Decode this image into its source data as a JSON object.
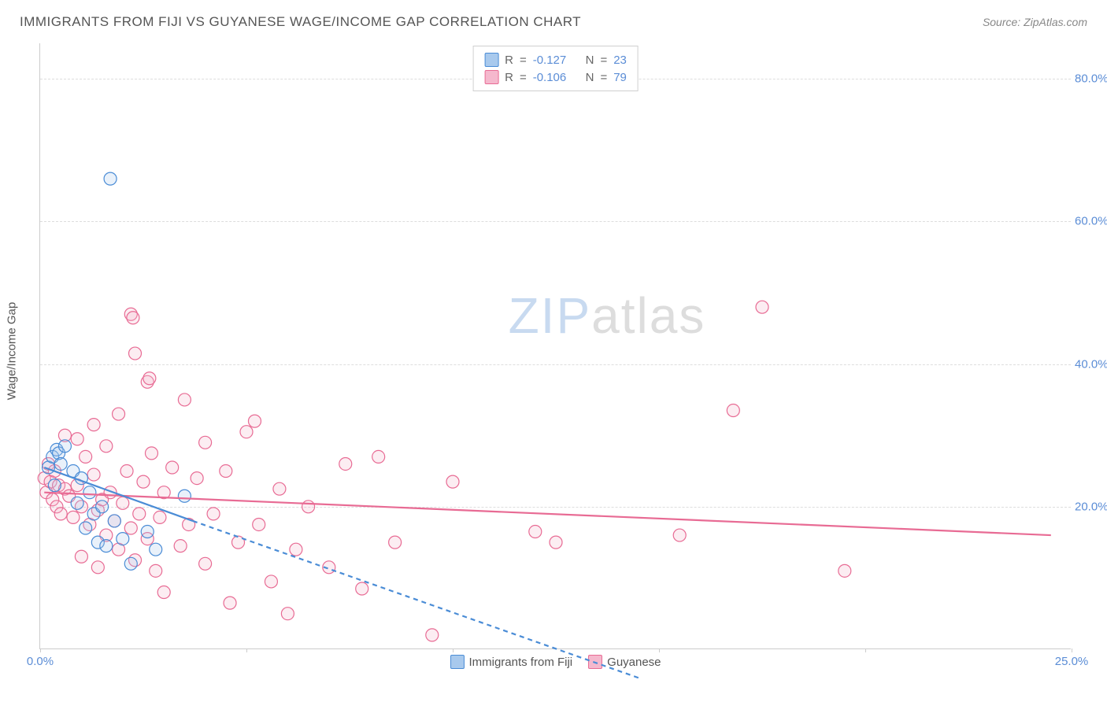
{
  "header": {
    "title": "IMMIGRANTS FROM FIJI VS GUYANESE WAGE/INCOME GAP CORRELATION CHART",
    "source": "Source: ZipAtlas.com"
  },
  "watermark": {
    "part1": "ZIP",
    "part2": "atlas"
  },
  "chart": {
    "type": "scatter",
    "ylabel": "Wage/Income Gap",
    "xlim": [
      0,
      25
    ],
    "ylim": [
      0,
      85
    ],
    "xticks": [
      0,
      5,
      10,
      15,
      20,
      25
    ],
    "xtick_labels": [
      "0.0%",
      "",
      "",
      "",
      "",
      "25.0%"
    ],
    "yticks": [
      20,
      40,
      60,
      80
    ],
    "ytick_labels": [
      "20.0%",
      "40.0%",
      "60.0%",
      "80.0%"
    ],
    "grid_color": "#dddddd",
    "axis_color": "#cccccc",
    "tick_color": "#5b8dd6",
    "background_color": "#ffffff",
    "marker_radius": 8,
    "marker_fill_opacity": 0.25,
    "marker_stroke_width": 1.2,
    "line_width": 2.2,
    "dash_pattern": "6,5",
    "series": {
      "fiji": {
        "label": "Immigrants from Fiji",
        "stroke": "#4a8cd6",
        "fill": "#a8c9ed",
        "R": "-0.127",
        "N": "23",
        "points": [
          [
            0.2,
            25.5
          ],
          [
            0.3,
            27.0
          ],
          [
            0.4,
            28.0
          ],
          [
            0.45,
            27.5
          ],
          [
            0.5,
            26.0
          ],
          [
            0.6,
            28.5
          ],
          [
            0.35,
            23.0
          ],
          [
            0.8,
            25.0
          ],
          [
            0.9,
            20.5
          ],
          [
            1.0,
            24.0
          ],
          [
            1.1,
            17.0
          ],
          [
            1.2,
            22.0
          ],
          [
            1.3,
            19.0
          ],
          [
            1.4,
            15.0
          ],
          [
            1.5,
            20.0
          ],
          [
            1.6,
            14.5
          ],
          [
            1.8,
            18.0
          ],
          [
            2.0,
            15.5
          ],
          [
            2.2,
            12.0
          ],
          [
            2.6,
            16.5
          ],
          [
            2.8,
            14.0
          ],
          [
            3.5,
            21.5
          ],
          [
            1.7,
            66.0
          ]
        ],
        "trend_solid": [
          [
            0.1,
            25.5
          ],
          [
            3.7,
            18.0
          ]
        ],
        "trend_dash": [
          [
            3.7,
            18.0
          ],
          [
            14.5,
            -4.0
          ]
        ]
      },
      "guyanese": {
        "label": "Guyanese",
        "stroke": "#e86b94",
        "fill": "#f5b8cd",
        "R": "-0.106",
        "N": "79",
        "points": [
          [
            0.1,
            24.0
          ],
          [
            0.15,
            22.0
          ],
          [
            0.2,
            26.0
          ],
          [
            0.25,
            23.5
          ],
          [
            0.3,
            21.0
          ],
          [
            0.35,
            25.0
          ],
          [
            0.4,
            20.0
          ],
          [
            0.45,
            23.0
          ],
          [
            0.5,
            19.0
          ],
          [
            0.6,
            22.5
          ],
          [
            0.7,
            21.5
          ],
          [
            0.8,
            18.5
          ],
          [
            0.9,
            23.0
          ],
          [
            1.0,
            20.0
          ],
          [
            1.1,
            27.0
          ],
          [
            1.2,
            17.5
          ],
          [
            1.3,
            24.5
          ],
          [
            1.4,
            19.5
          ],
          [
            1.5,
            21.0
          ],
          [
            1.6,
            16.0
          ],
          [
            1.7,
            22.0
          ],
          [
            1.8,
            18.0
          ],
          [
            1.9,
            14.0
          ],
          [
            2.0,
            20.5
          ],
          [
            2.1,
            25.0
          ],
          [
            2.2,
            17.0
          ],
          [
            2.3,
            12.5
          ],
          [
            2.4,
            19.0
          ],
          [
            2.5,
            23.5
          ],
          [
            2.6,
            15.5
          ],
          [
            2.7,
            27.5
          ],
          [
            2.8,
            11.0
          ],
          [
            2.9,
            18.5
          ],
          [
            3.0,
            22.0
          ],
          [
            3.2,
            25.5
          ],
          [
            3.4,
            14.5
          ],
          [
            3.6,
            17.5
          ],
          [
            3.8,
            24.0
          ],
          [
            4.0,
            12.0
          ],
          [
            4.2,
            19.0
          ],
          [
            4.5,
            25.0
          ],
          [
            4.8,
            15.0
          ],
          [
            5.0,
            30.5
          ],
          [
            5.3,
            17.5
          ],
          [
            5.6,
            9.5
          ],
          [
            5.8,
            22.5
          ],
          [
            6.2,
            14.0
          ],
          [
            6.5,
            20.0
          ],
          [
            7.0,
            11.5
          ],
          [
            7.4,
            26.0
          ],
          [
            7.8,
            8.5
          ],
          [
            8.2,
            27.0
          ],
          [
            8.6,
            15.0
          ],
          [
            9.5,
            2.0
          ],
          [
            10.0,
            23.5
          ],
          [
            12.0,
            16.5
          ],
          [
            12.5,
            15.0
          ],
          [
            15.5,
            16.0
          ],
          [
            2.3,
            41.5
          ],
          [
            2.6,
            37.5
          ],
          [
            2.65,
            38.0
          ],
          [
            2.2,
            47.0
          ],
          [
            2.25,
            46.5
          ],
          [
            1.3,
            31.5
          ],
          [
            1.9,
            33.0
          ],
          [
            3.5,
            35.0
          ],
          [
            5.2,
            32.0
          ],
          [
            0.6,
            30.0
          ],
          [
            4.0,
            29.0
          ],
          [
            17.5,
            48.0
          ],
          [
            16.8,
            33.5
          ],
          [
            0.9,
            29.5
          ],
          [
            1.6,
            28.5
          ],
          [
            3.0,
            8.0
          ],
          [
            4.6,
            6.5
          ],
          [
            6.0,
            5.0
          ],
          [
            19.5,
            11.0
          ],
          [
            1.0,
            13.0
          ],
          [
            1.4,
            11.5
          ]
        ],
        "trend_solid": [
          [
            0.1,
            22.0
          ],
          [
            24.5,
            16.0
          ]
        ]
      }
    }
  },
  "legend_top": {
    "R_label": "R",
    "N_label": "N",
    "eq": "="
  },
  "legend_bottom": {
    "items": [
      "fiji",
      "guyanese"
    ]
  }
}
